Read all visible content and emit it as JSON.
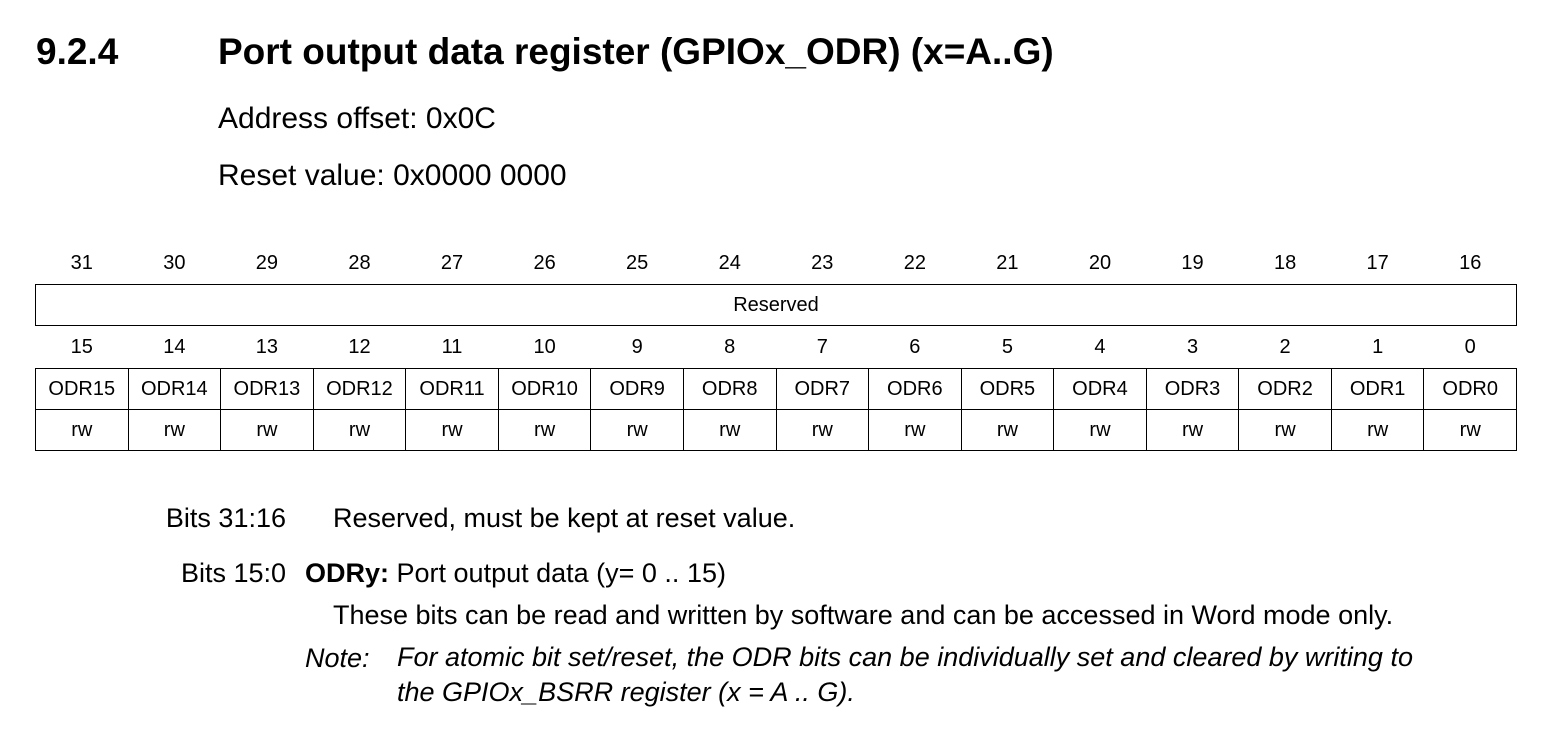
{
  "section": {
    "number": "9.2.4",
    "title": "Port output data register (GPIOx_ODR) (x=A..G)"
  },
  "register": {
    "address_offset": "Address offset: 0x0C",
    "reset_value": "Reset value: 0x0000 0000",
    "upper_bits": [
      "31",
      "30",
      "29",
      "28",
      "27",
      "26",
      "25",
      "24",
      "23",
      "22",
      "21",
      "20",
      "19",
      "18",
      "17",
      "16"
    ],
    "reserved_label": "Reserved",
    "lower_bits": [
      "15",
      "14",
      "13",
      "12",
      "11",
      "10",
      "9",
      "8",
      "7",
      "6",
      "5",
      "4",
      "3",
      "2",
      "1",
      "0"
    ],
    "fields": [
      "ODR15",
      "ODR14",
      "ODR13",
      "ODR12",
      "ODR11",
      "ODR10",
      "ODR9",
      "ODR8",
      "ODR7",
      "ODR6",
      "ODR5",
      "ODR4",
      "ODR3",
      "ODR2",
      "ODR1",
      "ODR0"
    ],
    "access": [
      "rw",
      "rw",
      "rw",
      "rw",
      "rw",
      "rw",
      "rw",
      "rw",
      "rw",
      "rw",
      "rw",
      "rw",
      "rw",
      "rw",
      "rw",
      "rw"
    ]
  },
  "description": {
    "reserved_bits": "Bits 31:16",
    "reserved_text": "Reserved, must be kept at reset value.",
    "odr_bits": "Bits 15:0",
    "odr_name": "ODRy:",
    "odr_text": " Port output data (y= 0 .. 15)",
    "odr_detail": "These bits can be read and written by software and can be accessed in Word mode only.",
    "note_label": "Note:",
    "note_line1": "For atomic bit set/reset, the ODR bits can be individually set and cleared by writing to",
    "note_line2": "the GPIOx_BSRR register (x = A .. G)."
  }
}
